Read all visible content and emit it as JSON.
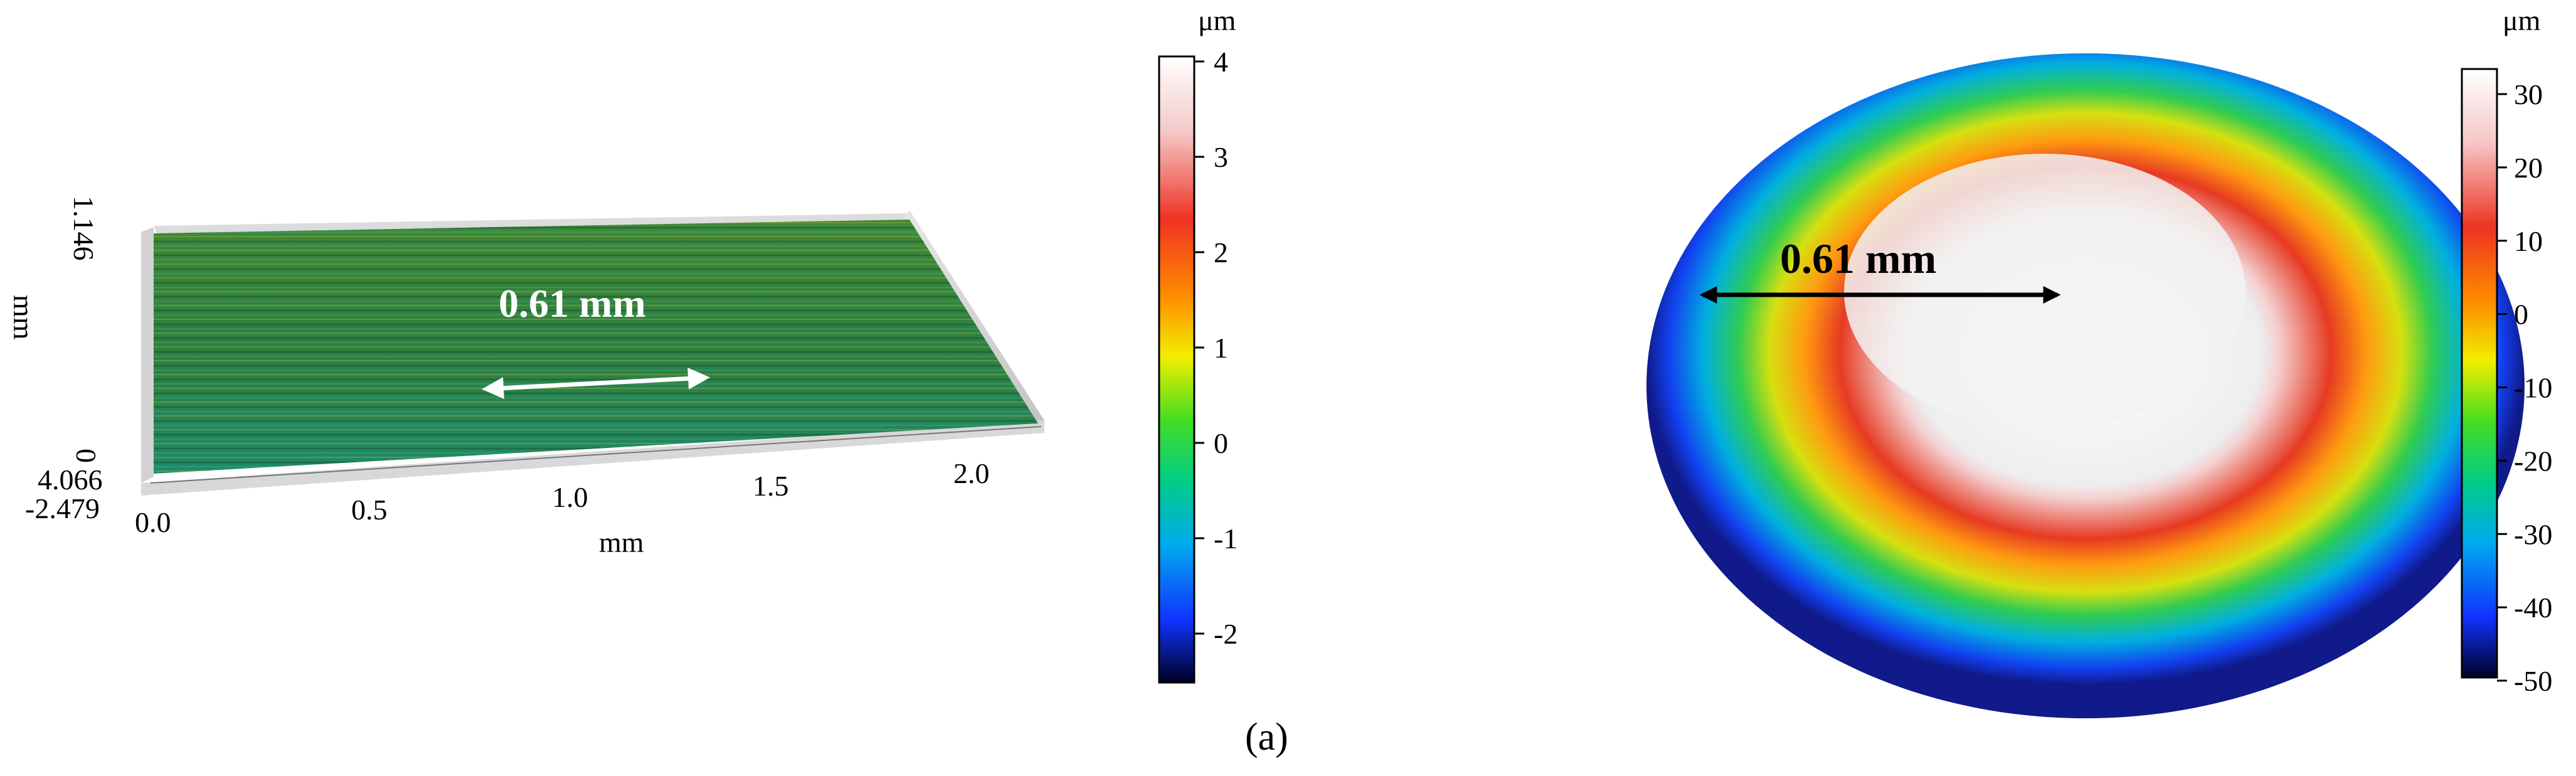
{
  "figure_label": "(a)",
  "left_panel": {
    "measure_label": "0.61 mm",
    "x_axis_title": "mm",
    "x_ticks": [
      "0.0",
      "0.5",
      "1.0",
      "1.5",
      "2.0"
    ],
    "y_axis_title": "mm",
    "y_ticks": [
      "0",
      "1.146"
    ],
    "z_ticks": [
      "4.066",
      "-2.479"
    ],
    "colorbar": {
      "unit": "μm",
      "ticks": [
        "4",
        "3",
        "2",
        "1",
        "0",
        "-1",
        "-2"
      ]
    }
  },
  "right_panel": {
    "measure_label": "0.61 mm",
    "colorbar": {
      "unit": "μm",
      "ticks": [
        "30",
        "20",
        "10",
        "0",
        "-10",
        "-20",
        "-30",
        "-40",
        "-50"
      ]
    }
  }
}
